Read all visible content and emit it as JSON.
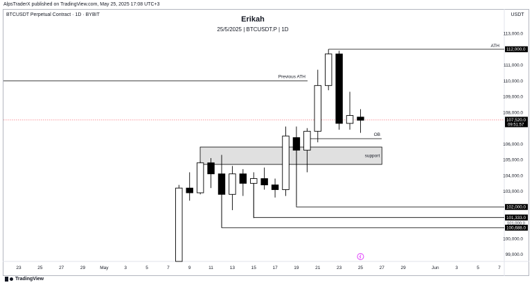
{
  "header": {
    "published_note": "AlpsTraderX published on TradingView.com, May 25, 2025 17:08 UTC+3",
    "symbol": "BTCUSDT Perpetual Contract · 1D · BYBIT",
    "title": "Erikah",
    "subtitle": "25/5/2025 | BTCUSDT.P | 1D",
    "currency": "USDT"
  },
  "footer": {
    "brand": "TradingView"
  },
  "chart_data": {
    "type": "candlestick",
    "y_ticks": [
      "113,000.0",
      "111,000.0",
      "110,000.0",
      "109,000.0",
      "108,000.0",
      "106,000.0",
      "105,000.0",
      "104,000.0",
      "103,000.0",
      "100,000.0",
      "99,000.0"
    ],
    "x_ticks": [
      {
        "date": "2025-04-23",
        "label": "23"
      },
      {
        "date": "2025-04-25",
        "label": "25"
      },
      {
        "date": "2025-04-27",
        "label": "27"
      },
      {
        "date": "2025-04-29",
        "label": "29"
      },
      {
        "date": "2025-05-01",
        "label": "May"
      },
      {
        "date": "2025-05-03",
        "label": "3"
      },
      {
        "date": "2025-05-05",
        "label": "5"
      },
      {
        "date": "2025-05-07",
        "label": "7"
      },
      {
        "date": "2025-05-09",
        "label": "9"
      },
      {
        "date": "2025-05-11",
        "label": "11"
      },
      {
        "date": "2025-05-13",
        "label": "13"
      },
      {
        "date": "2025-05-15",
        "label": "15"
      },
      {
        "date": "2025-05-17",
        "label": "17"
      },
      {
        "date": "2025-05-19",
        "label": "19"
      },
      {
        "date": "2025-05-21",
        "label": "21"
      },
      {
        "date": "2025-05-23",
        "label": "23"
      },
      {
        "date": "2025-05-25",
        "label": "25"
      },
      {
        "date": "2025-05-27",
        "label": "27"
      },
      {
        "date": "2025-05-29",
        "label": "29"
      },
      {
        "date": "2025-06-01",
        "label": "Jun"
      },
      {
        "date": "2025-06-03",
        "label": "3"
      },
      {
        "date": "2025-06-05",
        "label": "5"
      },
      {
        "date": "2025-06-07",
        "label": "7"
      }
    ],
    "candles": [
      {
        "date": "2025-05-08",
        "open": 97000,
        "high": 103400,
        "low": 96800,
        "close": 103200
      },
      {
        "date": "2025-05-09",
        "open": 103200,
        "high": 104200,
        "low": 102400,
        "close": 102900
      },
      {
        "date": "2025-05-10",
        "open": 102900,
        "high": 104900,
        "low": 102800,
        "close": 104800
      },
      {
        "date": "2025-05-11",
        "open": 104800,
        "high": 105100,
        "low": 103200,
        "close": 104100
      },
      {
        "date": "2025-05-12",
        "open": 104100,
        "high": 105300,
        "low": 100700,
        "close": 102800
      },
      {
        "date": "2025-05-13",
        "open": 102800,
        "high": 104600,
        "low": 101800,
        "close": 104100
      },
      {
        "date": "2025-05-14",
        "open": 104100,
        "high": 104400,
        "low": 102700,
        "close": 103500
      },
      {
        "date": "2025-05-15",
        "open": 103500,
        "high": 104200,
        "low": 101300,
        "close": 103800
      },
      {
        "date": "2025-05-16",
        "open": 103800,
        "high": 104500,
        "low": 103100,
        "close": 103400
      },
      {
        "date": "2025-05-17",
        "open": 103400,
        "high": 103800,
        "low": 102600,
        "close": 103100
      },
      {
        "date": "2025-05-18",
        "open": 103100,
        "high": 107100,
        "low": 102700,
        "close": 106500
      },
      {
        "date": "2025-05-19",
        "open": 106400,
        "high": 107100,
        "low": 102100,
        "close": 105600
      },
      {
        "date": "2025-05-20",
        "open": 105600,
        "high": 107000,
        "low": 104200,
        "close": 106800
      },
      {
        "date": "2025-05-21",
        "open": 106800,
        "high": 110700,
        "low": 106100,
        "close": 109700
      },
      {
        "date": "2025-05-22",
        "open": 109700,
        "high": 112000,
        "low": 109400,
        "close": 111700
      },
      {
        "date": "2025-05-23",
        "open": 111700,
        "high": 111900,
        "low": 106900,
        "close": 107300
      },
      {
        "date": "2025-05-24",
        "open": 107300,
        "high": 109300,
        "low": 106900,
        "close": 107800
      },
      {
        "date": "2025-05-25",
        "open": 107700,
        "high": 108200,
        "low": 106700,
        "close": 107500
      }
    ],
    "price_badges": [
      {
        "value": "112,000.0",
        "style": "dark"
      },
      {
        "value": "107,520.0",
        "style": "dark",
        "sub": "09:51:57"
      },
      {
        "value": "102,000.0",
        "style": "dark"
      },
      {
        "value": "101,333.0",
        "style": "dark"
      },
      {
        "value": "101,000.0",
        "style": "partial"
      },
      {
        "value": "100,688.0",
        "style": "dark"
      }
    ],
    "annotations": {
      "ath": "ATH",
      "previous_ath": "Previous ATH",
      "ob": "OB",
      "support": "support"
    },
    "colors": {
      "bull": "#ffffff",
      "bear": "#000000",
      "outline": "#000000",
      "current_price_line": "#f7525f",
      "zone_fill": "#e0e0e0"
    }
  }
}
